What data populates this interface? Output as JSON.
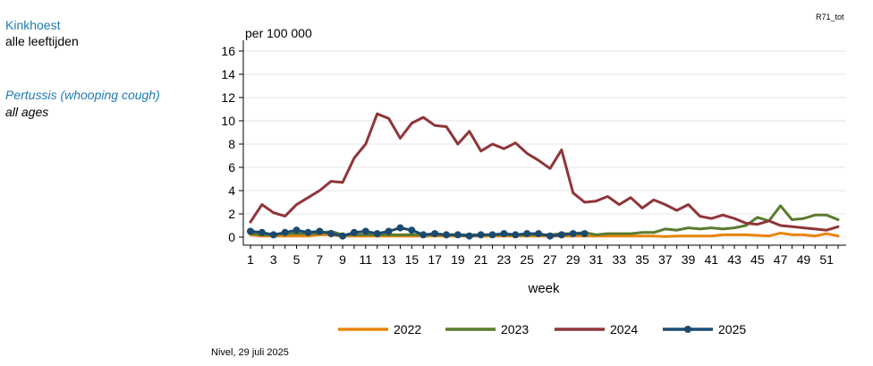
{
  "sidebar": {
    "title_nl": "Kinkhoest",
    "subtitle_nl": "alle leeftijden",
    "title_en": "Pertussis (whooping cough)",
    "subtitle_en": "all ages"
  },
  "report_code": "R71_tot",
  "source": "Nivel, 29 juli 2025",
  "chart_data": {
    "type": "line",
    "ylabel": "per 100 000",
    "xlabel": "week",
    "ylim": [
      0,
      16
    ],
    "yticks": [
      0,
      2,
      4,
      6,
      8,
      10,
      12,
      14,
      16
    ],
    "xlim": [
      1,
      52
    ],
    "xticks": [
      1,
      3,
      5,
      7,
      9,
      11,
      13,
      15,
      17,
      19,
      21,
      23,
      25,
      27,
      29,
      31,
      33,
      35,
      37,
      39,
      41,
      43,
      45,
      47,
      49,
      51
    ],
    "grid": true,
    "legend_position": "bottom",
    "series": [
      {
        "name": "2022",
        "color": "#e8850c",
        "markers": false,
        "values": [
          0.2,
          0.1,
          0.1,
          0.1,
          0.1,
          0.1,
          0.2,
          0.2,
          0.1,
          0.1,
          0.1,
          0.1,
          0.1,
          0.1,
          0.1,
          0.1,
          0.1,
          0.1,
          0.1,
          0.1,
          0.1,
          0.1,
          0.1,
          0.1,
          0.1,
          0.1,
          0.1,
          0.1,
          0.1,
          0.1,
          0.1,
          0.1,
          0.1,
          0.1,
          0.1,
          0.1,
          0.05,
          0.1,
          0.1,
          0.1,
          0.1,
          0.2,
          0.2,
          0.2,
          0.15,
          0.1,
          0.35,
          0.2,
          0.2,
          0.1,
          0.3,
          0.1
        ]
      },
      {
        "name": "2023",
        "color": "#5b7b2f",
        "markers": false,
        "values": [
          0.3,
          0.2,
          0.2,
          0.3,
          0.3,
          0.3,
          0.3,
          0.5,
          0.2,
          0.2,
          0.2,
          0.2,
          0.2,
          0.2,
          0.2,
          0.2,
          0.2,
          0.2,
          0.2,
          0.2,
          0.2,
          0.2,
          0.2,
          0.2,
          0.2,
          0.2,
          0.2,
          0.3,
          0.3,
          0.4,
          0.2,
          0.3,
          0.3,
          0.3,
          0.4,
          0.4,
          0.7,
          0.6,
          0.8,
          0.7,
          0.8,
          0.7,
          0.8,
          1.0,
          1.7,
          1.4,
          2.7,
          1.5,
          1.6,
          1.9,
          1.9,
          1.5
        ]
      },
      {
        "name": "2024",
        "color": "#8f3539",
        "markers": false,
        "values": [
          1.3,
          2.8,
          2.1,
          1.8,
          2.8,
          3.4,
          4.0,
          4.8,
          4.7,
          6.8,
          8.0,
          10.6,
          10.2,
          8.5,
          9.8,
          10.3,
          9.6,
          9.5,
          8.0,
          9.1,
          7.4,
          8.0,
          7.6,
          8.1,
          7.2,
          6.6,
          5.9,
          7.5,
          3.8,
          3.0,
          3.1,
          3.5,
          2.8,
          3.4,
          2.5,
          3.2,
          2.8,
          2.3,
          2.8,
          1.8,
          1.6,
          1.9,
          1.6,
          1.2,
          1.1,
          1.4,
          1.0,
          0.9,
          0.8,
          0.7,
          0.6,
          0.9
        ]
      },
      {
        "name": "2025",
        "color": "#1c4a6e",
        "markers": true,
        "values": [
          0.5,
          0.4,
          0.2,
          0.4,
          0.6,
          0.4,
          0.5,
          0.3,
          0.1,
          0.4,
          0.5,
          0.3,
          0.5,
          0.8,
          0.6,
          0.2,
          0.3,
          0.2,
          0.2,
          0.1,
          0.2,
          0.2,
          0.3,
          0.2,
          0.3,
          0.3,
          0.1,
          0.2,
          0.3,
          0.3
        ]
      }
    ]
  }
}
